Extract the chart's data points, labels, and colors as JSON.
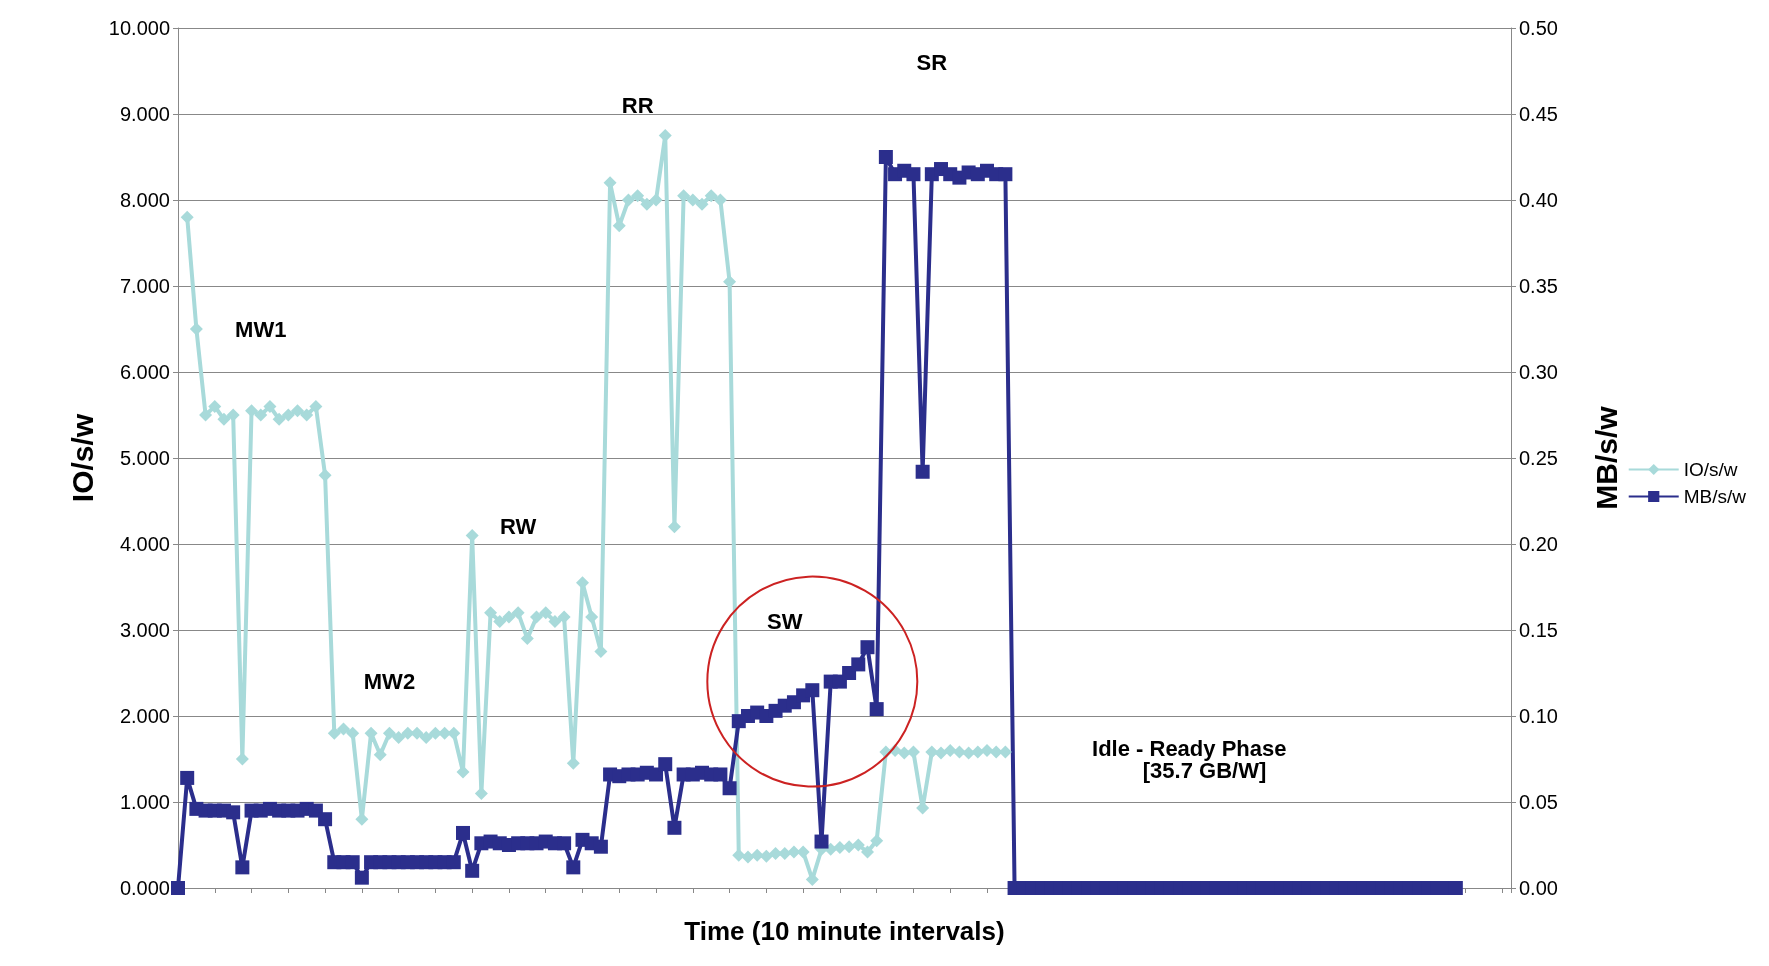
{
  "chart_data": {
    "type": "line",
    "xlabel": "Time (10 minute intervals)",
    "ylabel": "IO/s/w",
    "y2label": "MB/s/w",
    "categories": [
      null,
      null,
      null,
      null,
      null,
      null,
      null,
      null,
      null,
      null,
      null,
      null,
      null,
      null,
      null,
      null,
      null,
      null,
      null,
      null,
      null,
      null,
      null,
      null,
      null,
      null,
      null,
      null,
      null,
      null,
      null,
      null,
      null,
      null,
      null,
      null,
      null,
      null,
      null,
      null,
      null,
      null,
      null,
      null,
      null,
      null,
      null,
      null,
      null,
      null,
      null,
      null,
      null,
      null,
      null,
      null,
      null,
      null,
      null,
      null,
      null,
      null,
      null,
      null,
      null,
      null,
      null,
      null,
      null,
      null,
      null,
      null,
      null,
      null,
      null,
      null,
      null,
      null,
      null,
      null,
      null,
      null,
      null,
      null,
      null,
      null,
      null,
      null,
      null,
      null,
      null,
      null,
      null,
      null,
      null,
      null,
      null,
      null,
      null,
      null,
      null,
      null,
      null,
      null,
      null,
      null,
      null,
      null,
      null,
      null,
      null,
      null,
      null,
      null,
      null,
      null,
      null,
      null,
      null,
      null,
      null,
      null,
      null,
      null,
      null,
      null,
      null,
      null,
      null,
      null,
      null,
      null,
      null,
      null,
      null,
      null,
      null,
      null,
      null,
      null,
      null,
      null,
      null,
      null,
      null,
      null
    ],
    "series": [
      {
        "name": "IO/s/w",
        "color": "#a8dada",
        "marker": "diamond",
        "values": [
          null,
          7.8,
          6.5,
          5.5,
          5.6,
          5.45,
          5.5,
          1.5,
          5.55,
          5.5,
          5.6,
          5.45,
          5.5,
          5.55,
          5.5,
          5.6,
          4.8,
          1.8,
          1.85,
          1.8,
          0.8,
          1.8,
          1.55,
          1.8,
          1.75,
          1.8,
          1.8,
          1.75,
          1.8,
          1.8,
          1.8,
          1.35,
          4.1,
          1.1,
          3.2,
          3.1,
          3.15,
          3.2,
          2.9,
          3.15,
          3.2,
          3.1,
          3.15,
          1.45,
          3.55,
          3.15,
          2.75,
          8.2,
          7.7,
          8.0,
          8.05,
          7.95,
          8.0,
          8.75,
          4.2,
          8.05,
          8.0,
          7.95,
          8.05,
          8.0,
          7.05,
          0.38,
          0.36,
          0.38,
          0.37,
          0.4,
          0.4,
          0.42,
          0.42,
          0.1,
          0.45,
          0.45,
          0.47,
          0.48,
          0.5,
          0.42,
          0.55,
          1.58,
          1.6,
          1.57,
          1.58,
          0.93,
          1.58,
          1.57,
          1.6,
          1.58,
          1.57,
          1.58,
          1.6,
          1.58,
          1.58,
          null,
          null,
          null,
          null,
          null,
          null,
          null,
          null,
          null,
          null,
          null,
          null,
          null,
          null,
          null,
          null,
          null,
          null,
          null,
          null,
          null,
          null,
          null,
          null,
          null,
          null,
          null,
          null,
          null,
          null,
          null,
          null,
          null,
          null,
          null,
          null,
          null,
          null,
          null,
          null,
          null,
          null,
          null,
          null,
          null,
          null,
          null,
          null,
          null,
          null,
          null,
          null,
          null,
          null,
          null
        ]
      },
      {
        "name": "MB/s/w",
        "color": "#2b2e8c",
        "marker": "square",
        "axis": "y2",
        "values": [
          0,
          0.064,
          0.046,
          0.045,
          0.045,
          0.045,
          0.044,
          0.012,
          0.045,
          0.045,
          0.046,
          0.045,
          0.045,
          0.045,
          0.046,
          0.045,
          0.04,
          0.015,
          0.015,
          0.015,
          0.006,
          0.015,
          0.015,
          0.015,
          0.015,
          0.015,
          0.015,
          0.015,
          0.015,
          0.015,
          0.015,
          0.032,
          0.01,
          0.026,
          0.027,
          0.026,
          0.025,
          0.026,
          0.026,
          0.026,
          0.027,
          0.026,
          0.026,
          0.012,
          0.028,
          0.026,
          0.024,
          0.066,
          0.065,
          0.066,
          0.066,
          0.067,
          0.066,
          0.072,
          0.035,
          0.066,
          0.066,
          0.067,
          0.066,
          0.066,
          0.058,
          0.097,
          0.1,
          0.102,
          0.1,
          0.103,
          0.106,
          0.108,
          0.112,
          0.115,
          0.027,
          0.12,
          0.12,
          0.125,
          0.13,
          0.14,
          0.104,
          0.425,
          0.415,
          0.417,
          0.415,
          0.242,
          0.415,
          0.418,
          0.415,
          0.413,
          0.416,
          0.415,
          0.417,
          0.415,
          0.415,
          0,
          0,
          0,
          0,
          0,
          0,
          0,
          0,
          0,
          0,
          0,
          0,
          0,
          0,
          0,
          0,
          0,
          0,
          0,
          0,
          0,
          0,
          0,
          0,
          0,
          0,
          0,
          0,
          0,
          0,
          0,
          0,
          0,
          0,
          0,
          0,
          0,
          0,
          0,
          0,
          0,
          0,
          0,
          0,
          0,
          0,
          0,
          0,
          0,
          null,
          null,
          null,
          null,
          null,
          null
        ]
      }
    ],
    "ylim": [
      0,
      10
    ],
    "yticks": [
      {
        "value": 0,
        "label": "0.000"
      },
      {
        "value": 1,
        "label": "1.000"
      },
      {
        "value": 2,
        "label": "2.000"
      },
      {
        "value": 3,
        "label": "3.000"
      },
      {
        "value": 4,
        "label": "4.000"
      },
      {
        "value": 5,
        "label": "5.000"
      },
      {
        "value": 6,
        "label": "6.000"
      },
      {
        "value": 7,
        "label": "7.000"
      },
      {
        "value": 8,
        "label": "8.000"
      },
      {
        "value": 9,
        "label": "9.000"
      },
      {
        "value": 10,
        "label": "10.000"
      }
    ],
    "y2lim": [
      0,
      0.5
    ],
    "y2ticks": [
      {
        "value": 0,
        "label": "0.00"
      },
      {
        "value": 0.05,
        "label": "0.05"
      },
      {
        "value": 0.1,
        "label": "0.10"
      },
      {
        "value": 0.15,
        "label": "0.15"
      },
      {
        "value": 0.2,
        "label": "0.20"
      },
      {
        "value": 0.25,
        "label": "0.25"
      },
      {
        "value": 0.3,
        "label": "0.30"
      },
      {
        "value": 0.35,
        "label": "0.35"
      },
      {
        "value": 0.4,
        "label": "0.40"
      },
      {
        "value": 0.45,
        "label": "0.45"
      },
      {
        "value": 0.5,
        "label": "0.50"
      }
    ],
    "annotations": [
      "MW1",
      "MW2",
      "RW",
      "RR",
      "SW",
      "SR",
      "Idle - Ready Phase\n     [35.7 GB/W]"
    ],
    "grid": "y",
    "legend": "right"
  }
}
